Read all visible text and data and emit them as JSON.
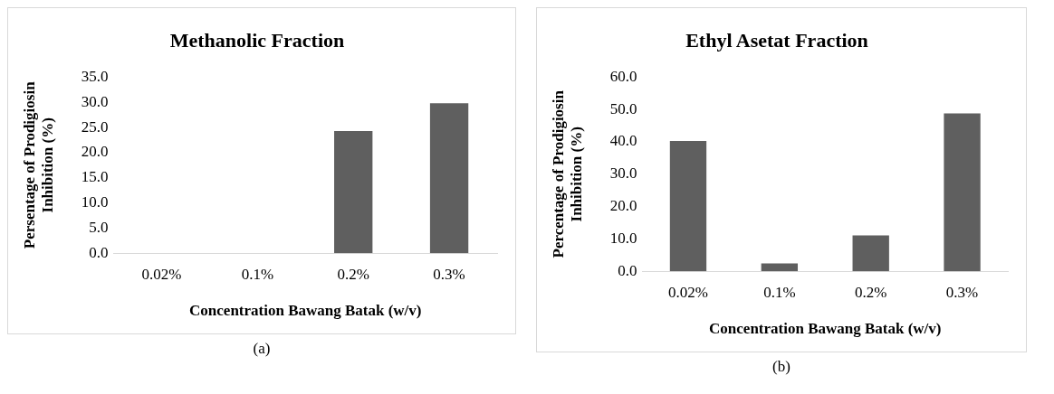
{
  "chart_data": [
    {
      "type": "bar",
      "title": "Methanolic Fraction",
      "xlabel": "Concentration Bawang Batak (w/v)",
      "ylabel": "Persentage of Prodigiosin Inhibition (%)",
      "categories": [
        "0.02%",
        "0.1%",
        "0.2%",
        "0.3%"
      ],
      "values": [
        0,
        0,
        24.3,
        29.8
      ],
      "color": "#5f5f5f",
      "ylim": [
        0,
        35
      ],
      "yticks": [
        {
          "value": 0,
          "label": "0.0"
        },
        {
          "value": 5,
          "label": "5.0"
        },
        {
          "value": 10,
          "label": "10.0"
        },
        {
          "value": 15,
          "label": "15.0"
        },
        {
          "value": 20,
          "label": "20.0"
        },
        {
          "value": 25,
          "label": "25.0"
        },
        {
          "value": 30,
          "label": "30.0"
        },
        {
          "value": 35,
          "label": "35.0"
        }
      ],
      "grid": false,
      "legend": false,
      "annotations": [
        "(a)"
      ]
    },
    {
      "type": "bar",
      "title": "Ethyl Asetat Fraction",
      "xlabel": "Concentration Bawang Batak (w/v)",
      "ylabel": "Percentage of Prodigiosin Inhibition (%)",
      "categories": [
        "0.02%",
        "0.1%",
        "0.2%",
        "0.3%"
      ],
      "values": [
        40.3,
        2.4,
        11.1,
        48.8
      ],
      "color": "#5f5f5f",
      "ylim": [
        0,
        60
      ],
      "yticks": [
        {
          "value": 0,
          "label": "0.0"
        },
        {
          "value": 10,
          "label": "10.0"
        },
        {
          "value": 20,
          "label": "20.0"
        },
        {
          "value": 30,
          "label": "30.0"
        },
        {
          "value": 40,
          "label": "40.0"
        },
        {
          "value": 50,
          "label": "50.0"
        },
        {
          "value": 60,
          "label": "60.0"
        }
      ],
      "grid": false,
      "legend": false,
      "annotations": [
        "(b)"
      ]
    }
  ]
}
